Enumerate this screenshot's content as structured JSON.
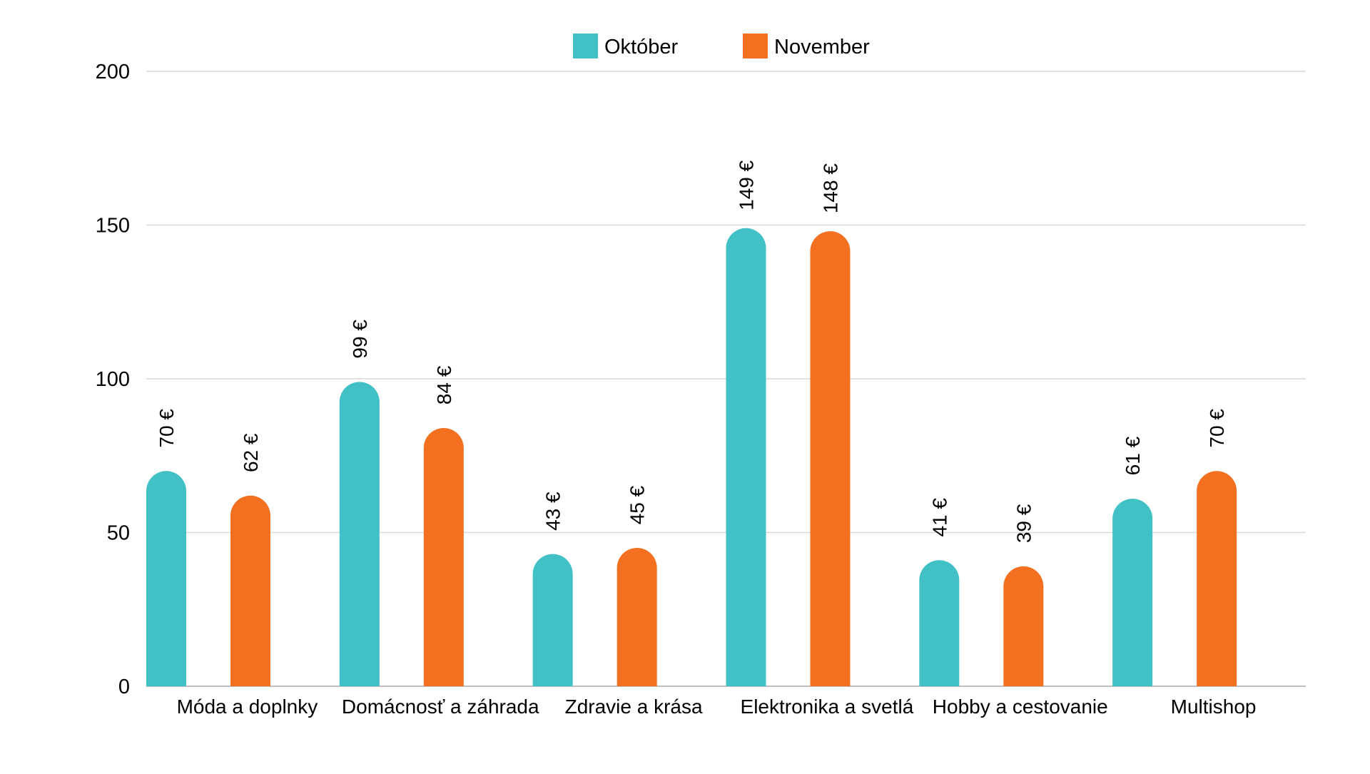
{
  "chart_data": {
    "type": "bar",
    "title": "",
    "xlabel": "",
    "ylabel": "",
    "ylim": [
      0,
      200
    ],
    "yticks": [
      0,
      50,
      100,
      150,
      200
    ],
    "grid": true,
    "legend_position": "top-center",
    "value_suffix": " €",
    "categories": [
      "Móda a doplnky",
      "Domácnosť a záhrada",
      "Zdravie a krása",
      "Elektronika a svetlá",
      "Hobby a cestovanie",
      "Multishop"
    ],
    "series": [
      {
        "name": "Október",
        "color": "#41c1c6",
        "values": [
          70,
          99,
          43,
          149,
          41,
          61
        ]
      },
      {
        "name": "November",
        "color": "#f37021",
        "values": [
          62,
          84,
          45,
          148,
          39,
          70
        ]
      }
    ]
  }
}
